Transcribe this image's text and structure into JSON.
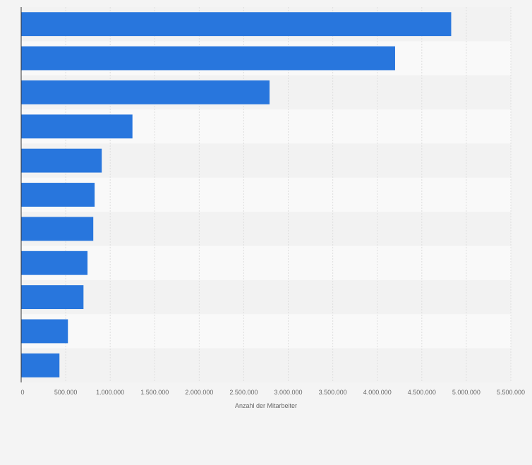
{
  "chart_data": {
    "type": "bar",
    "orientation": "horizontal",
    "title": "",
    "xlabel": "Anzahl der Mitarbeiter",
    "ylabel": "",
    "categories": [
      "",
      "",
      "",
      "",
      "",
      "",
      "",
      "",
      "",
      "",
      ""
    ],
    "values": [
      4830000,
      4200000,
      2790000,
      1250000,
      905000,
      825000,
      810000,
      745000,
      700000,
      525000,
      430000
    ],
    "xlim": [
      0,
      5500000
    ],
    "xticks": [
      0,
      500000,
      1000000,
      1500000,
      2000000,
      2500000,
      3000000,
      3500000,
      4000000,
      4500000,
      5000000,
      5500000
    ],
    "xtick_labels": [
      "0",
      "500.000",
      "1.000.000",
      "1.500.000",
      "2.000.000",
      "2.500.000",
      "3.000.000",
      "3.500.000",
      "4.000.000",
      "4.500.000",
      "5.000.000",
      "5.500.000"
    ],
    "grid": true,
    "legend": "none",
    "colors": {
      "bar": "#2876dd",
      "band_dark": "#f2f2f2",
      "band_light": "#f9f9f9",
      "grid": "#dedede",
      "axis": "#333333",
      "text": "#666666"
    }
  }
}
